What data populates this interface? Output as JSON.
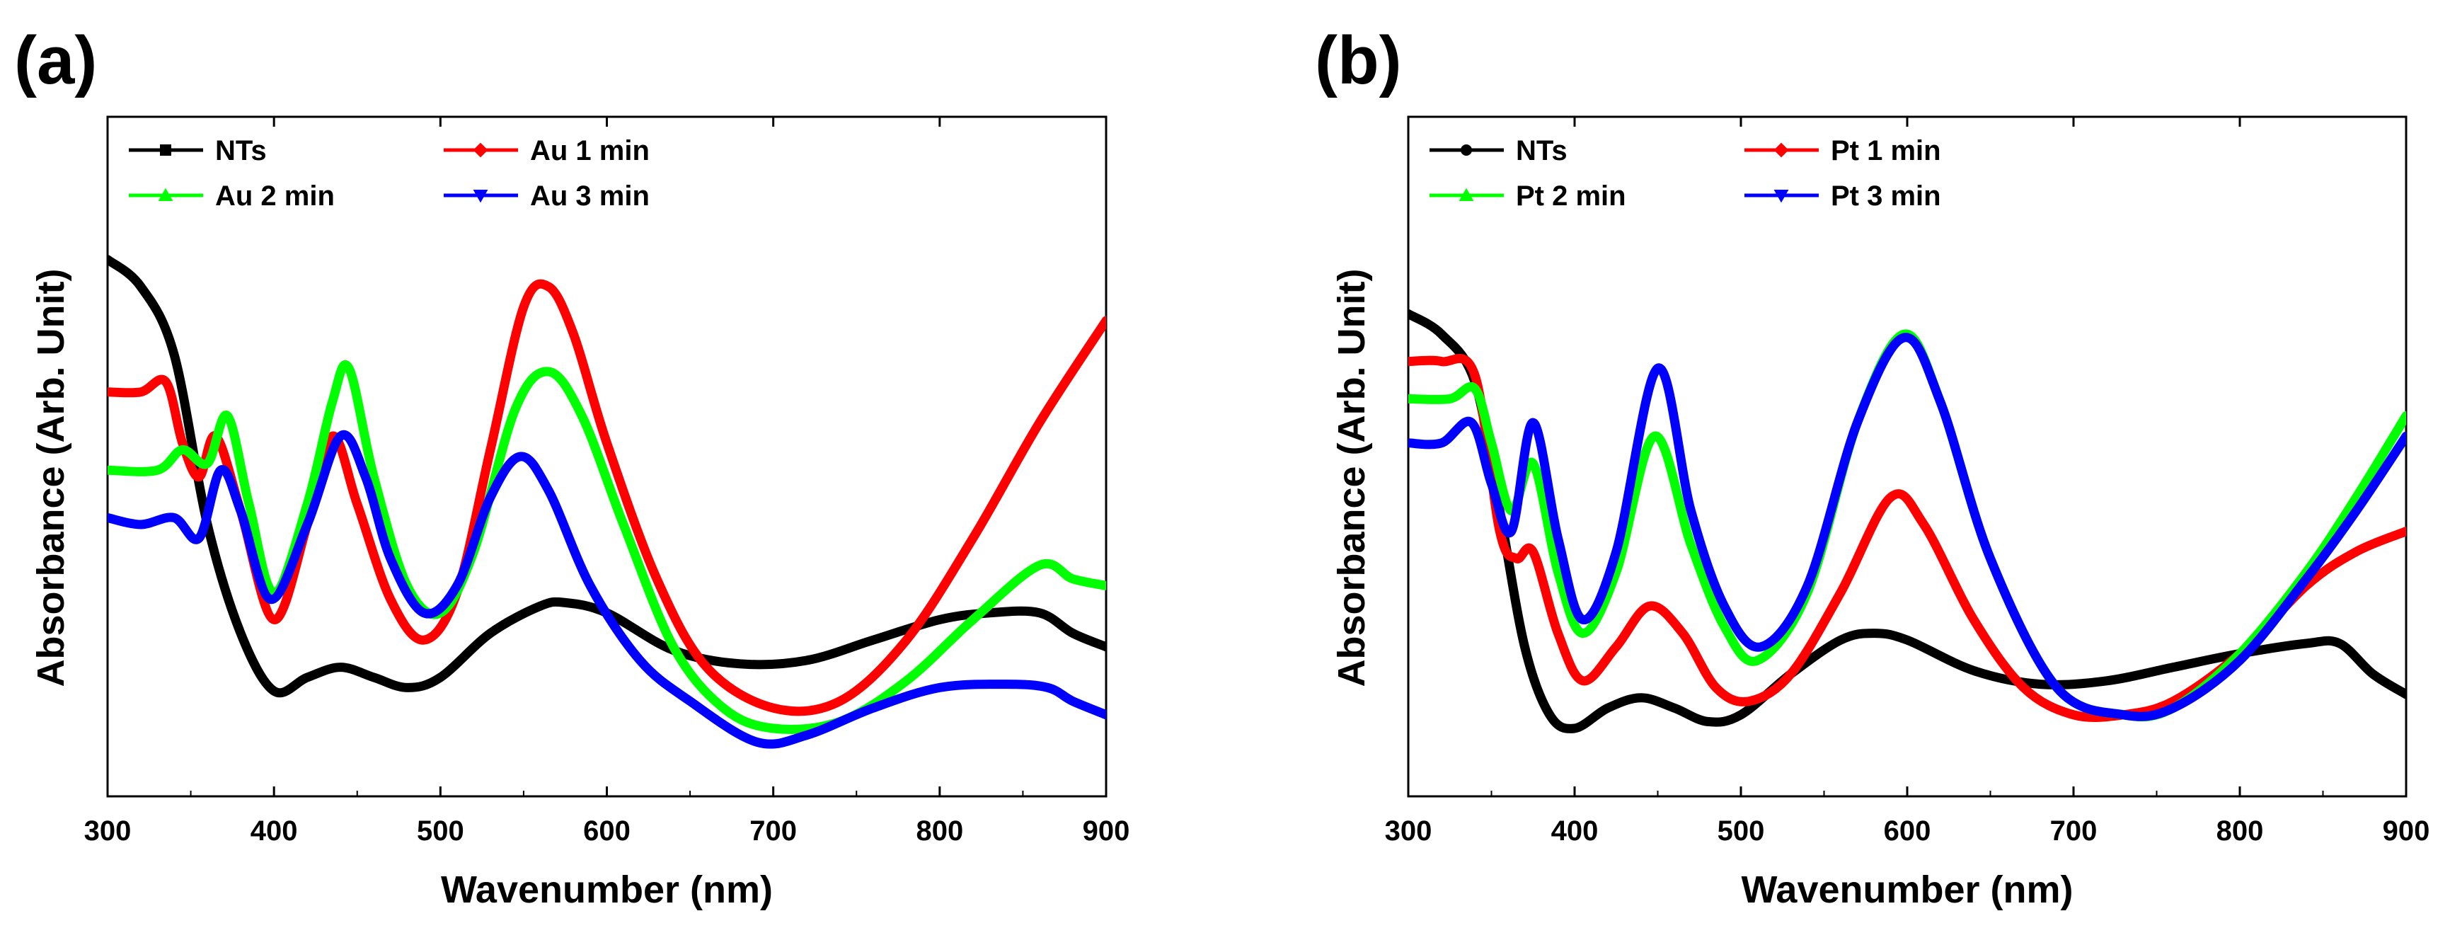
{
  "figure": {
    "panel_labels": [
      "(a)",
      "(b)"
    ]
  },
  "chart_data": [
    {
      "panel": "(a)",
      "type": "line",
      "xlabel": "Wavenumber (nm)",
      "ylabel": "Absorbance (Arb. Unit)",
      "xlim": [
        300,
        900
      ],
      "ylim": [
        0,
        1
      ],
      "x_ticks": [
        300,
        400,
        500,
        600,
        700,
        800,
        900
      ],
      "y_ticks_shown": false,
      "legend_position": "top-left",
      "series": [
        {
          "name": "NTs",
          "color": "#000000",
          "marker": "square",
          "x": [
            300,
            320,
            340,
            360,
            380,
            400,
            420,
            440,
            460,
            480,
            500,
            530,
            560,
            575,
            600,
            640,
            680,
            720,
            760,
            800,
            830,
            860,
            880,
            900
          ],
          "y": [
            0.79,
            0.75,
            0.65,
            0.4,
            0.24,
            0.155,
            0.175,
            0.19,
            0.175,
            0.16,
            0.175,
            0.24,
            0.28,
            0.285,
            0.27,
            0.215,
            0.195,
            0.2,
            0.23,
            0.26,
            0.27,
            0.27,
            0.24,
            0.22
          ]
        },
        {
          "name": "Au 1 min",
          "color": "#ff0000",
          "marker": "diamond",
          "x": [
            300,
            320,
            335,
            345,
            355,
            365,
            380,
            400,
            420,
            435,
            450,
            470,
            490,
            510,
            530,
            550,
            565,
            580,
            600,
            630,
            660,
            700,
            740,
            780,
            820,
            860,
            900
          ],
          "y": [
            0.595,
            0.595,
            0.61,
            0.52,
            0.47,
            0.53,
            0.42,
            0.26,
            0.4,
            0.53,
            0.43,
            0.29,
            0.23,
            0.3,
            0.51,
            0.72,
            0.75,
            0.68,
            0.52,
            0.32,
            0.19,
            0.13,
            0.14,
            0.23,
            0.38,
            0.55,
            0.7
          ]
        },
        {
          "name": "Au 2 min",
          "color": "#00ff00",
          "marker": "triangle-up",
          "x": [
            300,
            330,
            345,
            360,
            372,
            385,
            400,
            420,
            435,
            445,
            460,
            480,
            500,
            520,
            545,
            565,
            585,
            610,
            640,
            670,
            700,
            740,
            780,
            820,
            860,
            880,
            900
          ],
          "y": [
            0.48,
            0.48,
            0.51,
            0.49,
            0.56,
            0.43,
            0.3,
            0.43,
            0.58,
            0.63,
            0.47,
            0.31,
            0.27,
            0.36,
            0.57,
            0.625,
            0.56,
            0.4,
            0.22,
            0.13,
            0.1,
            0.11,
            0.17,
            0.26,
            0.34,
            0.32,
            0.31
          ]
        },
        {
          "name": "Au 3 min",
          "color": "#0000ff",
          "marker": "triangle-down",
          "x": [
            300,
            320,
            340,
            355,
            368,
            380,
            398,
            420,
            440,
            455,
            470,
            490,
            510,
            530,
            548,
            565,
            590,
            620,
            650,
            690,
            720,
            760,
            800,
            840,
            865,
            880,
            900
          ],
          "y": [
            0.41,
            0.4,
            0.41,
            0.38,
            0.48,
            0.42,
            0.29,
            0.4,
            0.53,
            0.47,
            0.35,
            0.27,
            0.31,
            0.44,
            0.5,
            0.45,
            0.31,
            0.2,
            0.14,
            0.08,
            0.09,
            0.13,
            0.16,
            0.165,
            0.16,
            0.14,
            0.12
          ]
        }
      ]
    },
    {
      "panel": "(b)",
      "type": "line",
      "xlabel": "Wavenumber (nm)",
      "ylabel": "Absorbance (Arb. Unit)",
      "xlim": [
        300,
        900
      ],
      "ylim": [
        0,
        1
      ],
      "x_ticks": [
        300,
        400,
        500,
        600,
        700,
        800,
        900
      ],
      "y_ticks_shown": false,
      "legend_position": "top-left",
      "series": [
        {
          "name": "NTs",
          "color": "#000000",
          "marker": "circle",
          "x": [
            300,
            320,
            340,
            355,
            370,
            385,
            400,
            420,
            440,
            460,
            480,
            500,
            530,
            560,
            580,
            600,
            640,
            680,
            720,
            760,
            800,
            840,
            860,
            880,
            900
          ],
          "y": [
            0.71,
            0.68,
            0.61,
            0.42,
            0.22,
            0.12,
            0.1,
            0.13,
            0.145,
            0.13,
            0.11,
            0.12,
            0.18,
            0.23,
            0.24,
            0.23,
            0.185,
            0.165,
            0.17,
            0.19,
            0.21,
            0.225,
            0.225,
            0.18,
            0.15
          ]
        },
        {
          "name": "Pt 1 min",
          "color": "#ff0000",
          "marker": "diamond",
          "x": [
            300,
            320,
            340,
            355,
            365,
            375,
            390,
            405,
            425,
            445,
            465,
            485,
            505,
            530,
            560,
            590,
            610,
            640,
            670,
            700,
            730,
            760,
            800,
            840,
            870,
            900
          ],
          "y": [
            0.64,
            0.64,
            0.62,
            0.39,
            0.35,
            0.36,
            0.24,
            0.17,
            0.22,
            0.28,
            0.24,
            0.16,
            0.14,
            0.18,
            0.3,
            0.44,
            0.4,
            0.26,
            0.16,
            0.12,
            0.12,
            0.14,
            0.21,
            0.31,
            0.36,
            0.39
          ]
        },
        {
          "name": "Pt 2 min",
          "color": "#00ff00",
          "marker": "triangle-up",
          "x": [
            300,
            325,
            340,
            350,
            362,
            375,
            390,
            405,
            425,
            448,
            470,
            490,
            510,
            540,
            570,
            598,
            620,
            650,
            690,
            730,
            760,
            800,
            840,
            870,
            900
          ],
          "y": [
            0.585,
            0.585,
            0.6,
            0.52,
            0.42,
            0.49,
            0.33,
            0.24,
            0.33,
            0.53,
            0.37,
            0.25,
            0.2,
            0.3,
            0.55,
            0.68,
            0.58,
            0.35,
            0.16,
            0.12,
            0.13,
            0.21,
            0.33,
            0.44,
            0.56
          ]
        },
        {
          "name": "Pt 3 min",
          "color": "#0000ff",
          "marker": "triangle-down",
          "x": [
            300,
            320,
            338,
            350,
            362,
            375,
            390,
            405,
            425,
            450,
            470,
            490,
            512,
            540,
            570,
            598,
            620,
            650,
            690,
            730,
            760,
            800,
            840,
            870,
            900
          ],
          "y": [
            0.52,
            0.52,
            0.55,
            0.46,
            0.39,
            0.55,
            0.38,
            0.26,
            0.36,
            0.63,
            0.42,
            0.28,
            0.22,
            0.31,
            0.55,
            0.675,
            0.58,
            0.35,
            0.16,
            0.12,
            0.13,
            0.2,
            0.32,
            0.42,
            0.53
          ]
        }
      ]
    }
  ]
}
